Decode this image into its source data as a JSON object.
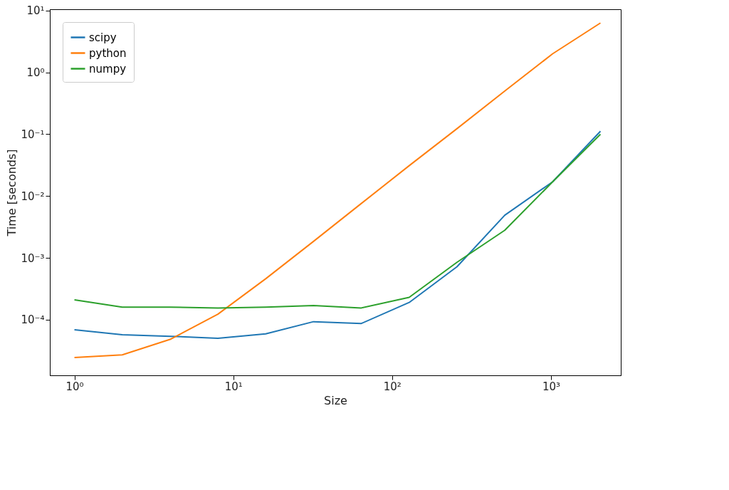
{
  "chart_data": {
    "type": "line",
    "xlabel": "Size",
    "ylabel": "Time [seconds]",
    "log": "xy",
    "grid": false,
    "legend": "top left",
    "marker": "none",
    "line_style": "solid",
    "x": [
      1,
      2,
      4,
      8,
      16,
      32,
      64,
      128,
      256,
      512,
      1024,
      2048
    ],
    "xlim": [
      0.7,
      2750
    ],
    "ylim": [
      1.26e-05,
      10.5
    ],
    "xticks": [
      {
        "value": 1,
        "label": "10⁰"
      },
      {
        "value": 10,
        "label": "10¹"
      },
      {
        "value": 100,
        "label": "10²"
      },
      {
        "value": 1000,
        "label": "10³"
      }
    ],
    "yticks": [
      {
        "value": 0.0001,
        "label": "10⁻⁴"
      },
      {
        "value": 0.001,
        "label": "10⁻³"
      },
      {
        "value": 0.01,
        "label": "10⁻²"
      },
      {
        "value": 0.1,
        "label": "10⁻¹"
      },
      {
        "value": 1,
        "label": "10⁰"
      },
      {
        "value": 10,
        "label": "10¹"
      }
    ],
    "series": [
      {
        "name": "scipy",
        "color": "#1f77b4",
        "values": [
          6.9e-05,
          5.7e-05,
          5.4e-05,
          5e-05,
          5.9e-05,
          9.3e-05,
          8.7e-05,
          0.00019,
          0.00072,
          0.0049,
          0.017,
          0.112
        ]
      },
      {
        "name": "python",
        "color": "#ff7f0e",
        "values": [
          2.45e-05,
          2.7e-05,
          4.8e-05,
          0.000123,
          0.00046,
          0.00185,
          0.0076,
          0.031,
          0.123,
          0.5,
          2.0,
          6.3
        ]
      },
      {
        "name": "numpy",
        "color": "#2ca02c",
        "values": [
          0.00021,
          0.00016,
          0.00016,
          0.000155,
          0.00016,
          0.00017,
          0.000155,
          0.00023,
          0.00085,
          0.0028,
          0.017,
          0.1
        ]
      }
    ]
  }
}
